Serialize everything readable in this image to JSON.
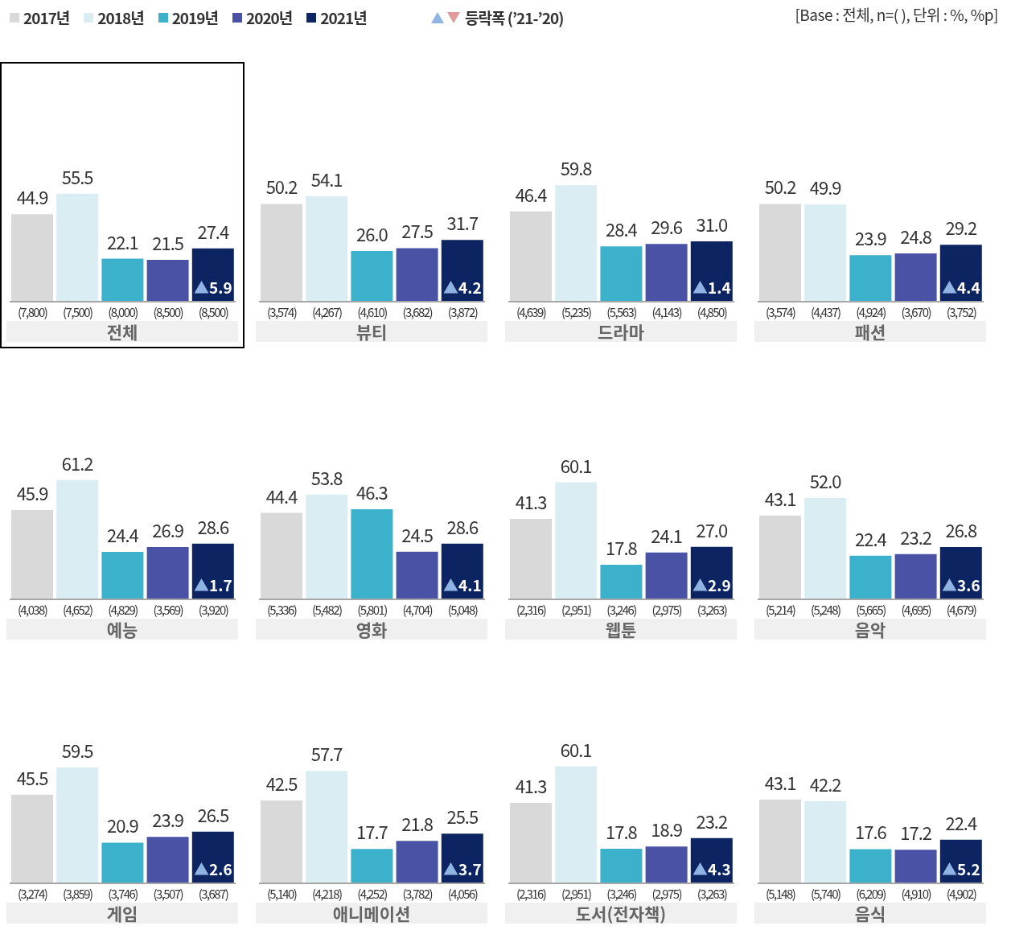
{
  "chart_data": [
    {
      "type": "bar",
      "title": "전체",
      "stacked": true,
      "legend": "top",
      "categories": [
        "(7,800)",
        "(7,500)",
        "(8,000)",
        "(8,500)",
        "(8,500)"
      ],
      "annotations": [
        "▲5.9",
        "등락폭 (’21-’20)",
        "[Base : 전체, n=( ), 단위 : %, %p]"
      ],
      "series": [
        {
          "name": "2017년",
          "color": "#d9d9d9",
          "values": [
            44.9,
            null,
            null,
            null,
            null
          ],
          "value_labels": [
            "44.9",
            null,
            null,
            null,
            null
          ]
        },
        {
          "name": "2018년",
          "color": "#daedf3",
          "values": [
            null,
            55.5,
            null,
            null,
            null
          ],
          "value_labels": [
            null,
            "55.5",
            null,
            null,
            null
          ]
        },
        {
          "name": "2019년",
          "color": "#3cb1cc",
          "values": [
            null,
            null,
            22.1,
            null,
            null
          ],
          "value_labels": [
            null,
            null,
            "22.1",
            null,
            null
          ]
        },
        {
          "name": "2020년",
          "color": "#4a52a6",
          "values": [
            null,
            null,
            null,
            21.5,
            null
          ],
          "value_labels": [
            null,
            null,
            null,
            "21.5",
            null
          ]
        },
        {
          "name": "2021년",
          "color": "#0c2461",
          "values": [
            null,
            null,
            null,
            null,
            27.4
          ],
          "value_labels": [
            null,
            null,
            null,
            null,
            "27.4"
          ]
        }
      ]
    },
    {
      "type": "bar",
      "title": "뷰티",
      "stacked": true,
      "categories": [
        "(3,574)",
        "(4,267)",
        "(4,610)",
        "(3,682)",
        "(3,872)"
      ],
      "annotations": [
        "▲4.2"
      ],
      "series": [
        {
          "color": "#d9d9d9",
          "values": [
            50.2,
            null,
            null,
            null,
            null
          ],
          "value_labels": [
            "50.2",
            null,
            null,
            null,
            null
          ]
        },
        {
          "color": "#daedf3",
          "values": [
            null,
            54.1,
            null,
            null,
            null
          ],
          "value_labels": [
            null,
            "54.1",
            null,
            null,
            null
          ]
        },
        {
          "color": "#3cb1cc",
          "values": [
            null,
            null,
            26.0,
            null,
            null
          ],
          "value_labels": [
            null,
            null,
            "26.0",
            null,
            null
          ]
        },
        {
          "color": "#4a52a6",
          "values": [
            null,
            null,
            null,
            27.5,
            null
          ],
          "value_labels": [
            null,
            null,
            null,
            "27.5",
            null
          ]
        },
        {
          "color": "#0c2461",
          "values": [
            null,
            null,
            null,
            null,
            31.7
          ],
          "value_labels": [
            null,
            null,
            null,
            null,
            "31.7"
          ]
        }
      ]
    },
    {
      "type": "bar",
      "title": "드라마",
      "stacked": true,
      "categories": [
        "(4,639)",
        "(5,235)",
        "(5,563)",
        "(4,143)",
        "(4,850)"
      ],
      "annotations": [
        "▲1.4"
      ],
      "series": [
        {
          "color": "#d9d9d9",
          "values": [
            46.4,
            null,
            null,
            null,
            null
          ],
          "value_labels": [
            "46.4",
            null,
            null,
            null,
            null
          ]
        },
        {
          "color": "#daedf3",
          "values": [
            null,
            59.8,
            null,
            null,
            null
          ],
          "value_labels": [
            null,
            "59.8",
            null,
            null,
            null
          ]
        },
        {
          "color": "#3cb1cc",
          "values": [
            null,
            null,
            28.4,
            null,
            null
          ],
          "value_labels": [
            null,
            null,
            "28.4",
            null,
            null
          ]
        },
        {
          "color": "#4a52a6",
          "values": [
            null,
            null,
            null,
            29.6,
            null
          ],
          "value_labels": [
            null,
            null,
            null,
            "29.6",
            null
          ]
        },
        {
          "color": "#0c2461",
          "values": [
            null,
            null,
            null,
            null,
            31.0
          ],
          "value_labels": [
            null,
            null,
            null,
            null,
            "31.0"
          ]
        }
      ]
    },
    {
      "type": "bar",
      "title": "패션",
      "stacked": true,
      "categories": [
        "(3,574)",
        "(4,437)",
        "(4,924)",
        "(3,670)",
        "(3,752)"
      ],
      "annotations": [
        "▲4.4"
      ],
      "series": [
        {
          "color": "#d9d9d9",
          "values": [
            50.2,
            null,
            null,
            null,
            null
          ],
          "value_labels": [
            "50.2",
            null,
            null,
            null,
            null
          ]
        },
        {
          "color": "#daedf3",
          "values": [
            null,
            49.9,
            null,
            null,
            null
          ],
          "value_labels": [
            null,
            "49.9",
            null,
            null,
            null
          ]
        },
        {
          "color": "#3cb1cc",
          "values": [
            null,
            null,
            23.9,
            null,
            null
          ],
          "value_labels": [
            null,
            null,
            "23.9",
            null,
            null
          ]
        },
        {
          "color": "#4a52a6",
          "values": [
            null,
            null,
            null,
            24.8,
            null
          ],
          "value_labels": [
            null,
            null,
            null,
            "24.8",
            null
          ]
        },
        {
          "color": "#0c2461",
          "values": [
            null,
            null,
            null,
            null,
            29.2
          ],
          "value_labels": [
            null,
            null,
            null,
            null,
            "29.2"
          ]
        }
      ]
    },
    {
      "type": "bar",
      "title": "예능",
      "stacked": true,
      "categories": [
        "(4,038)",
        "(4,652)",
        "(4,829)",
        "(3,569)",
        "(3,920)"
      ],
      "annotations": [
        "▲1.7"
      ],
      "series": [
        {
          "color": "#d9d9d9",
          "values": [
            45.9,
            null,
            null,
            null,
            null
          ],
          "value_labels": [
            "45.9",
            null,
            null,
            null,
            null
          ]
        },
        {
          "color": "#daedf3",
          "values": [
            null,
            61.2,
            null,
            null,
            null
          ],
          "value_labels": [
            null,
            "61.2",
            null,
            null,
            null
          ]
        },
        {
          "color": "#3cb1cc",
          "values": [
            null,
            null,
            24.4,
            null,
            null
          ],
          "value_labels": [
            null,
            null,
            "24.4",
            null,
            null
          ]
        },
        {
          "color": "#4a52a6",
          "values": [
            null,
            null,
            null,
            26.9,
            null
          ],
          "value_labels": [
            null,
            null,
            null,
            "26.9",
            null
          ]
        },
        {
          "color": "#0c2461",
          "values": [
            null,
            null,
            null,
            null,
            28.6
          ],
          "value_labels": [
            null,
            null,
            null,
            null,
            "28.6"
          ]
        }
      ]
    },
    {
      "type": "bar",
      "title": "영화",
      "stacked": true,
      "categories": [
        "(5,336)",
        "(5,482)",
        "(5,801)",
        "(4,704)",
        "(5,048)"
      ],
      "annotations": [
        "▲4.1"
      ],
      "series": [
        {
          "color": "#d9d9d9",
          "values": [
            44.4,
            null,
            null,
            null,
            null
          ],
          "value_labels": [
            "44.4",
            null,
            null,
            null,
            null
          ]
        },
        {
          "color": "#daedf3",
          "values": [
            null,
            53.8,
            null,
            null,
            null
          ],
          "value_labels": [
            null,
            "53.8",
            null,
            null,
            null
          ]
        },
        {
          "color": "#3cb1cc",
          "values": [
            null,
            null,
            46.3,
            null,
            null
          ],
          "value_labels": [
            null,
            null,
            "46.3",
            null,
            null
          ]
        },
        {
          "color": "#4a52a6",
          "values": [
            null,
            null,
            null,
            24.5,
            null
          ],
          "value_labels": [
            null,
            null,
            null,
            "24.5",
            null
          ]
        },
        {
          "color": "#0c2461",
          "values": [
            null,
            null,
            null,
            null,
            28.6
          ],
          "value_labels": [
            null,
            null,
            null,
            null,
            "28.6"
          ]
        }
      ]
    },
    {
      "type": "bar",
      "title": "웹툰",
      "stacked": true,
      "categories": [
        "(2,316)",
        "(2,951)",
        "(3,246)",
        "(2,975)",
        "(3,263)"
      ],
      "annotations": [
        "▲2.9"
      ],
      "series": [
        {
          "color": "#d9d9d9",
          "values": [
            41.3,
            null,
            null,
            null,
            null
          ],
          "value_labels": [
            "41.3",
            null,
            null,
            null,
            null
          ]
        },
        {
          "color": "#daedf3",
          "values": [
            null,
            60.1,
            null,
            null,
            null
          ],
          "value_labels": [
            null,
            "60.1",
            null,
            null,
            null
          ]
        },
        {
          "color": "#3cb1cc",
          "values": [
            null,
            null,
            17.8,
            null,
            null
          ],
          "value_labels": [
            null,
            null,
            "17.8",
            null,
            null
          ]
        },
        {
          "color": "#4a52a6",
          "values": [
            null,
            null,
            null,
            24.1,
            null
          ],
          "value_labels": [
            null,
            null,
            null,
            "24.1",
            null
          ]
        },
        {
          "color": "#0c2461",
          "values": [
            null,
            null,
            null,
            null,
            27.0
          ],
          "value_labels": [
            null,
            null,
            null,
            null,
            "27.0"
          ]
        }
      ]
    },
    {
      "type": "bar",
      "title": "음악",
      "stacked": true,
      "categories": [
        "(5,214)",
        "(5,248)",
        "(5,665)",
        "(4,695)",
        "(4,679)"
      ],
      "annotations": [
        "▲3.6"
      ],
      "series": [
        {
          "color": "#d9d9d9",
          "values": [
            43.1,
            null,
            null,
            null,
            null
          ],
          "value_labels": [
            "43.1",
            null,
            null,
            null,
            null
          ]
        },
        {
          "color": "#daedf3",
          "values": [
            null,
            52.0,
            null,
            null,
            null
          ],
          "value_labels": [
            null,
            "52.0",
            null,
            null,
            null
          ]
        },
        {
          "color": "#3cb1cc",
          "values": [
            null,
            null,
            22.4,
            null,
            null
          ],
          "value_labels": [
            null,
            null,
            "22.4",
            null,
            null
          ]
        },
        {
          "color": "#4a52a6",
          "values": [
            null,
            null,
            null,
            23.2,
            null
          ],
          "value_labels": [
            null,
            null,
            null,
            "23.2",
            null
          ]
        },
        {
          "color": "#0c2461",
          "values": [
            null,
            null,
            null,
            null,
            26.8
          ],
          "value_labels": [
            null,
            null,
            null,
            null,
            "26.8"
          ]
        }
      ]
    },
    {
      "type": "bar",
      "title": "게임",
      "stacked": true,
      "categories": [
        "(3,274)",
        "(3,859)",
        "(3,746)",
        "(3,507)",
        "(3,687)"
      ],
      "annotations": [
        "▲2.6"
      ],
      "series": [
        {
          "color": "#d9d9d9",
          "values": [
            45.5,
            null,
            null,
            null,
            null
          ],
          "value_labels": [
            "45.5",
            null,
            null,
            null,
            null
          ]
        },
        {
          "color": "#daedf3",
          "values": [
            null,
            59.5,
            null,
            null,
            null
          ],
          "value_labels": [
            null,
            "59.5",
            null,
            null,
            null
          ]
        },
        {
          "color": "#3cb1cc",
          "values": [
            null,
            null,
            20.9,
            null,
            null
          ],
          "value_labels": [
            null,
            null,
            "20.9",
            null,
            null
          ]
        },
        {
          "color": "#4a52a6",
          "values": [
            null,
            null,
            null,
            23.9,
            null
          ],
          "value_labels": [
            null,
            null,
            null,
            "23.9",
            null
          ]
        },
        {
          "color": "#0c2461",
          "values": [
            null,
            null,
            null,
            null,
            26.5
          ],
          "value_labels": [
            null,
            null,
            null,
            null,
            "26.5"
          ]
        }
      ]
    },
    {
      "type": "bar",
      "title": "애니메이션",
      "stacked": true,
      "categories": [
        "(5,140)",
        "(4,218)",
        "(4,252)",
        "(3,782)",
        "(4,056)"
      ],
      "annotations": [
        "▲3.7"
      ],
      "series": [
        {
          "color": "#d9d9d9",
          "values": [
            42.5,
            null,
            null,
            null,
            null
          ],
          "value_labels": [
            "42.5",
            null,
            null,
            null,
            null
          ]
        },
        {
          "color": "#daedf3",
          "values": [
            null,
            57.7,
            null,
            null,
            null
          ],
          "value_labels": [
            null,
            "57.7",
            null,
            null,
            null
          ]
        },
        {
          "color": "#3cb1cc",
          "values": [
            null,
            null,
            17.7,
            null,
            null
          ],
          "value_labels": [
            null,
            null,
            "17.7",
            null,
            null
          ]
        },
        {
          "color": "#4a52a6",
          "values": [
            null,
            null,
            null,
            21.8,
            null
          ],
          "value_labels": [
            null,
            null,
            null,
            "21.8",
            null
          ]
        },
        {
          "color": "#0c2461",
          "values": [
            null,
            null,
            null,
            null,
            25.5
          ],
          "value_labels": [
            null,
            null,
            null,
            null,
            "25.5"
          ]
        }
      ]
    },
    {
      "type": "bar",
      "title": "도서(전자책)",
      "stacked": true,
      "categories": [
        "(2,316)",
        "(2,951)",
        "(3,246)",
        "(2,975)",
        "(3,263)"
      ],
      "annotations": [
        "▲4.3"
      ],
      "series": [
        {
          "color": "#d9d9d9",
          "values": [
            41.3,
            null,
            null,
            null,
            null
          ],
          "value_labels": [
            "41.3",
            null,
            null,
            null,
            null
          ]
        },
        {
          "color": "#daedf3",
          "values": [
            null,
            60.1,
            null,
            null,
            null
          ],
          "value_labels": [
            null,
            "60.1",
            null,
            null,
            null
          ]
        },
        {
          "color": "#3cb1cc",
          "values": [
            null,
            null,
            17.8,
            null,
            null
          ],
          "value_labels": [
            null,
            null,
            "17.8",
            null,
            null
          ]
        },
        {
          "color": "#4a52a6",
          "values": [
            null,
            null,
            null,
            18.9,
            null
          ],
          "value_labels": [
            null,
            null,
            null,
            "18.9",
            null
          ]
        },
        {
          "color": "#0c2461",
          "values": [
            null,
            null,
            null,
            null,
            23.2
          ],
          "value_labels": [
            null,
            null,
            null,
            null,
            "23.2"
          ]
        }
      ]
    },
    {
      "type": "bar",
      "title": "음식",
      "stacked": true,
      "categories": [
        "(5,148)",
        "(5,740)",
        "(6,209)",
        "(4,910)",
        "(4,902)"
      ],
      "annotations": [
        "▲5.2"
      ],
      "series": [
        {
          "color": "#d9d9d9",
          "values": [
            43.1,
            null,
            null,
            null,
            null
          ],
          "value_labels": [
            "43.1",
            null,
            null,
            null,
            null
          ]
        },
        {
          "color": "#daedf3",
          "values": [
            null,
            42.2,
            null,
            null,
            null
          ],
          "value_labels": [
            null,
            "42.2",
            null,
            null,
            null
          ]
        },
        {
          "color": "#3cb1cc",
          "values": [
            null,
            null,
            17.6,
            null,
            null
          ],
          "value_labels": [
            null,
            null,
            "17.6",
            null,
            null
          ]
        },
        {
          "color": "#4a52a6",
          "values": [
            null,
            null,
            null,
            17.2,
            null
          ],
          "value_labels": [
            null,
            null,
            null,
            "17.2",
            null
          ]
        },
        {
          "color": "#0c2461",
          "values": [
            null,
            null,
            null,
            null,
            22.4
          ],
          "value_labels": [
            null,
            null,
            null,
            null,
            "22.4"
          ]
        }
      ]
    }
  ]
}
